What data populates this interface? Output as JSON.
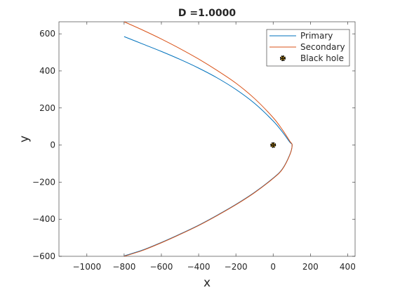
{
  "chart_data": {
    "type": "line",
    "title": "D =1.0000",
    "xlabel": "x",
    "ylabel": "y",
    "xlim": [
      -1150,
      440
    ],
    "ylim": [
      -600,
      665
    ],
    "xticks": [
      -1000,
      -800,
      -600,
      -400,
      -200,
      0,
      200,
      400
    ],
    "xtick_labels": [
      "−1000",
      "−800",
      "−600",
      "−400",
      "−200",
      "0",
      "200",
      "400"
    ],
    "yticks": [
      -600,
      -400,
      -200,
      0,
      200,
      400,
      600
    ],
    "ytick_labels": [
      "−600",
      "−400",
      "−200",
      "0",
      "200",
      "400",
      "600"
    ],
    "grid": false,
    "legend_position": "top-right",
    "series": [
      {
        "name": "Primary",
        "color": "#0072bd",
        "x": [
          -800,
          -700,
          -600,
          -500,
          -400,
          -300,
          -200,
          -100,
          0,
          50,
          90,
          102,
          90,
          50,
          0,
          -100,
          -200,
          -300,
          -400,
          -500,
          -600,
          -700,
          -800
        ],
        "y": [
          585,
          545,
          505,
          462,
          415,
          362,
          300,
          225,
          130,
          70,
          15,
          0,
          -50,
          -128,
          -178,
          -255,
          -320,
          -378,
          -432,
          -480,
          -525,
          -566,
          -598
        ]
      },
      {
        "name": "Secondary",
        "color": "#d95319",
        "x": [
          -800,
          -700,
          -600,
          -500,
          -400,
          -300,
          -200,
          -100,
          0,
          50,
          90,
          102,
          90,
          50,
          0,
          -100,
          -200,
          -300,
          -400,
          -500,
          -600,
          -700,
          -800
        ],
        "y": [
          665,
          620,
          572,
          520,
          464,
          402,
          334,
          251,
          148,
          82,
          20,
          0,
          -52,
          -130,
          -180,
          -257,
          -322,
          -380,
          -434,
          -482,
          -527,
          -568,
          -600
        ]
      }
    ],
    "markers": [
      {
        "name": "Black hole",
        "x": 0,
        "y": 0,
        "color": "#000000",
        "face_color": "#edb120"
      }
    ]
  }
}
